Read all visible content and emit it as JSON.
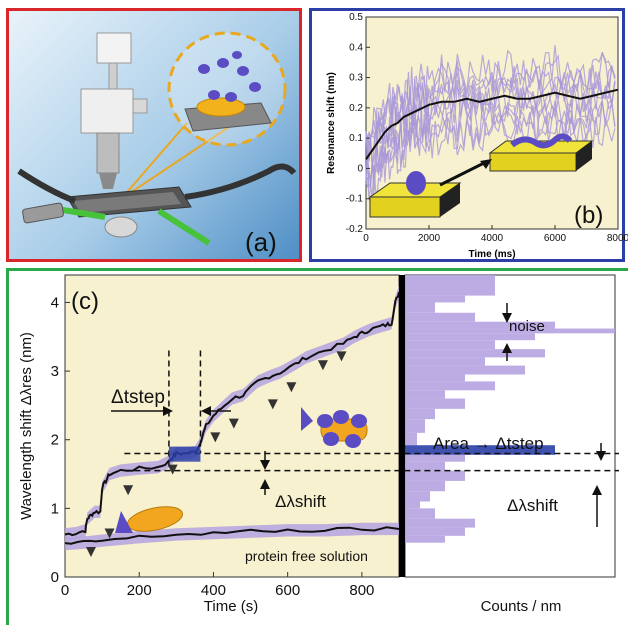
{
  "panel_a": {
    "label": "(a)"
  },
  "panel_b": {
    "label": "(b)",
    "chart_data": {
      "type": "line",
      "xlabel": "Time (ms)",
      "ylabel": "Resonance shift (nm)",
      "xlim": [
        0,
        8000
      ],
      "ylim": [
        -0.2,
        0.5
      ],
      "xticks": [
        0,
        2000,
        4000,
        6000,
        8000
      ],
      "yticks": [
        -0.2,
        -0.1,
        0,
        0.1,
        0.2,
        0.3,
        0.4,
        0.5
      ],
      "series": [
        {
          "role": "average",
          "x": [
            0,
            200,
            400,
            600,
            800,
            1000,
            1200,
            1400,
            1600,
            1800,
            2000,
            2400,
            2800,
            3200,
            3600,
            4000,
            4400,
            4800,
            5200,
            5600,
            6000,
            6400,
            6800,
            7200,
            7600,
            8000
          ],
          "y": [
            0.03,
            0.06,
            0.09,
            0.12,
            0.14,
            0.15,
            0.17,
            0.18,
            0.19,
            0.2,
            0.21,
            0.22,
            0.22,
            0.23,
            0.22,
            0.23,
            0.24,
            0.23,
            0.23,
            0.24,
            0.25,
            0.24,
            0.23,
            0.24,
            0.25,
            0.26
          ]
        }
      ],
      "individual_traces": 10,
      "colors": {
        "average": "#111111",
        "traces": "#a797d8",
        "background": "#f7f1cf"
      }
    }
  },
  "panel_c": {
    "label": "(c)",
    "chart_data": [
      {
        "type": "line",
        "xlabel": "Time (s)",
        "ylabel": "Wavelength shift Δλres (nm)",
        "xlim": [
          0,
          900
        ],
        "ylim": [
          0,
          4.4
        ],
        "xticks": [
          0,
          200,
          400,
          600,
          800
        ],
        "yticks": [
          0,
          1,
          2,
          3,
          4
        ],
        "series": [
          {
            "role": "protein binding trace",
            "x": [
              0,
              30,
              55,
              60,
              70,
              80,
              95,
              100,
              110,
              120,
              150,
              200,
              250,
              280,
              290,
              300,
              320,
              350,
              360,
              370,
              380,
              400,
              420,
              450,
              480,
              500,
              520,
              550,
              580,
              620,
              650,
              700,
              750,
              780,
              800,
              820,
              850,
              870,
              880,
              890,
              900
            ],
            "y": [
              0.62,
              0.64,
              0.68,
              0.85,
              0.9,
              0.95,
              0.95,
              1.3,
              1.4,
              1.5,
              1.55,
              1.58,
              1.6,
              1.68,
              1.75,
              1.8,
              1.8,
              1.82,
              1.9,
              2.05,
              2.2,
              2.35,
              2.45,
              2.6,
              2.65,
              2.75,
              2.85,
              2.92,
              2.98,
              3.1,
              3.2,
              3.3,
              3.4,
              3.5,
              3.55,
              3.6,
              3.65,
              3.68,
              3.7,
              4.0,
              4.15
            ]
          },
          {
            "role": "protein free solution",
            "x": [
              0,
              50,
              100,
              200,
              300,
              400,
              500,
              600,
              700,
              800,
              900
            ],
            "y": [
              0.48,
              0.5,
              0.53,
              0.58,
              0.62,
              0.64,
              0.66,
              0.68,
              0.68,
              0.7,
              0.7
            ]
          }
        ],
        "annotations": {
          "protein_free": "protein free solution",
          "delta_t_step": "Δtstep",
          "delta_lambda_shift": "Δλshift",
          "dashed_levels": [
            1.55,
            1.8
          ]
        },
        "colors": {
          "trace": "#111111",
          "band": "#b5a3e0",
          "step_highlight": "#2b3fa7",
          "background": "#f7f1cf"
        }
      },
      {
        "type": "bar",
        "orientation": "horizontal",
        "xlabel": "Counts / nm",
        "annotations": {
          "noise": "noise",
          "area": "Area → Δtstep",
          "delta_lambda_shift": "Δλshift"
        }
      }
    ]
  }
}
